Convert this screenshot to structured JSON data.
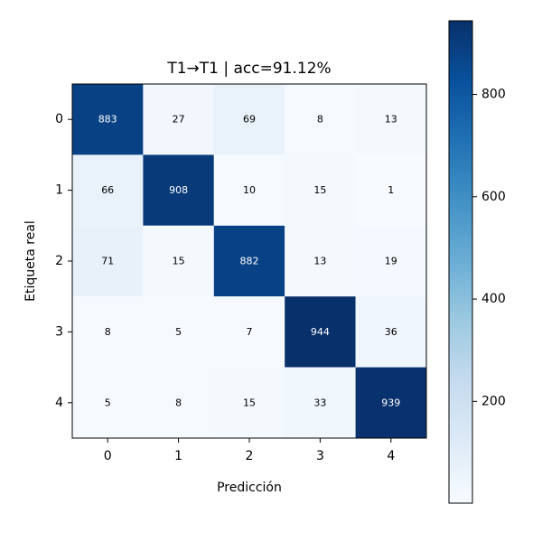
{
  "chart_data": {
    "type": "heatmap",
    "title": "T1→T1 | acc=91.12%",
    "xlabel": "Predicción",
    "ylabel": "Etiqueta real",
    "x_categories": [
      "0",
      "1",
      "2",
      "3",
      "4"
    ],
    "y_categories": [
      "0",
      "1",
      "2",
      "3",
      "4"
    ],
    "values": [
      [
        883,
        27,
        69,
        8,
        13
      ],
      [
        66,
        908,
        10,
        15,
        1
      ],
      [
        71,
        15,
        882,
        13,
        19
      ],
      [
        8,
        5,
        7,
        944,
        36
      ],
      [
        5,
        8,
        15,
        33,
        939
      ]
    ],
    "colormap": "Blues",
    "color_range": [
      1,
      944
    ],
    "colorbar_ticks": [
      "200",
      "400",
      "600",
      "800"
    ],
    "colorbar_tick_values": [
      200,
      400,
      600,
      800
    ],
    "grid": false
  }
}
